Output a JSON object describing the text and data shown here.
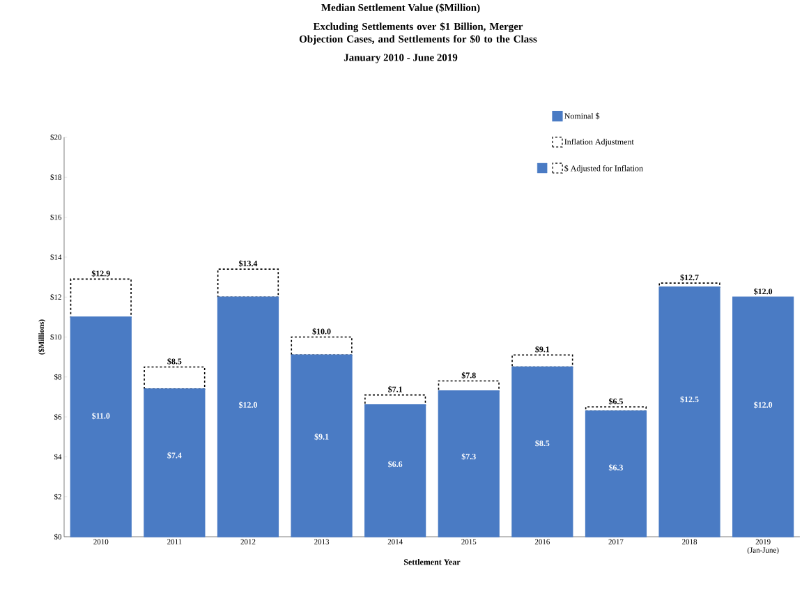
{
  "chart_data": {
    "type": "bar",
    "stacked": true,
    "title": "Median Settlement Value ($Million)",
    "subtitle": "Excluding Settlements over $1 Billion, Merger Objection Cases, and Settlements for $0 to the Class",
    "annotations": [
      "January 2010 - June 2019",
      "$ Adjusted for Inflation"
    ],
    "xlabel": "Settlement Year",
    "ylabel": "($Millions)",
    "categories": [
      "2010",
      "2011",
      "2012",
      "2013",
      "2014",
      "2015",
      "2016",
      "2017",
      "2018",
      "2019 (Jan-June)"
    ],
    "series": [
      {
        "name": "Nominal $",
        "color": "#4a7bc4",
        "values": [
          11.0,
          7.4,
          12.0,
          9.1,
          6.6,
          7.3,
          8.5,
          6.3,
          12.5,
          12.0
        ],
        "value_labels": [
          "$11.0",
          "$7.4",
          "$12.0",
          "$9.1",
          "$6.6",
          "$7.3",
          "$8.5",
          "$6.3",
          "$12.5",
          "$12.0"
        ]
      },
      {
        "name": "Inflation Adjustment",
        "color": "#ffffff",
        "line_style": "dashed",
        "values": [
          1.9,
          1.1,
          1.4,
          0.9,
          0.5,
          0.5,
          0.6,
          0.2,
          0.2,
          null
        ]
      }
    ],
    "totals": [
      "$12.9",
      "$8.5",
      "$13.4",
      "$10.0",
      "$7.1",
      "$7.8",
      "$9.1",
      "$6.5",
      "$12.7",
      "$12.0"
    ],
    "ylim": [
      0,
      20
    ],
    "yticks": [
      {
        "value": 0,
        "label": "$0"
      },
      {
        "value": 2,
        "label": "$2"
      },
      {
        "value": 4,
        "label": "$4"
      },
      {
        "value": 6,
        "label": "$6"
      },
      {
        "value": 8,
        "label": "$8"
      },
      {
        "value": 10,
        "label": "$10"
      },
      {
        "value": 12,
        "label": "$12"
      },
      {
        "value": 14,
        "label": "$14"
      },
      {
        "value": 16,
        "label": "$16"
      },
      {
        "value": 18,
        "label": "$18"
      },
      {
        "value": 20,
        "label": "$20"
      }
    ],
    "legend": "top right"
  }
}
